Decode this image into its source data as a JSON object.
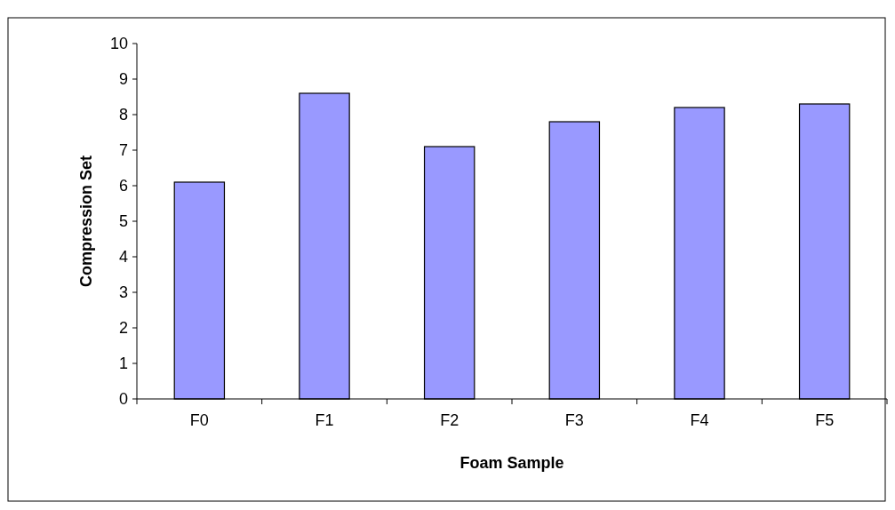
{
  "chart_data": {
    "type": "bar",
    "xlabel": "Foam Sample",
    "ylabel": "Compression Set",
    "categories": [
      "F0",
      "F1",
      "F2",
      "F3",
      "F4",
      "F5"
    ],
    "values": [
      6.1,
      8.6,
      7.1,
      7.8,
      8.2,
      8.3
    ],
    "color": "#9999ff",
    "ylim": [
      0,
      10
    ],
    "yticks": [
      0,
      1,
      2,
      3,
      4,
      5,
      6,
      7,
      8,
      9,
      10
    ],
    "grid": false
  }
}
